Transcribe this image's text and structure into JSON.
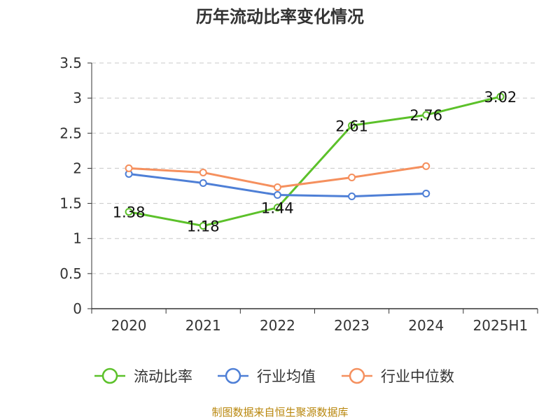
{
  "chart_data": {
    "type": "line",
    "title": "历年流动比率变化情况",
    "categories": [
      "2020",
      "2021",
      "2022",
      "2023",
      "2024",
      "2025H1"
    ],
    "ylim": [
      0,
      3.5
    ],
    "yticks": [
      "0",
      "0.5",
      "1",
      "1.5",
      "2",
      "2.5",
      "3",
      "3.5"
    ],
    "grid": true,
    "legend_position": "bottom",
    "series": [
      {
        "name": "流动比率",
        "color": "#5cc12a",
        "values": [
          1.38,
          1.18,
          1.44,
          2.61,
          2.76,
          3.02
        ],
        "labels": [
          "1.38",
          "1.18",
          "1.44",
          "2.61",
          "2.76",
          "3.02"
        ]
      },
      {
        "name": "行业均值",
        "color": "#4e7fd6",
        "values": [
          1.92,
          1.79,
          1.62,
          1.6,
          1.64,
          null
        ]
      },
      {
        "name": "行业中位数",
        "color": "#f5905e",
        "values": [
          2.0,
          1.94,
          1.73,
          1.87,
          2.03,
          null
        ]
      }
    ],
    "source": "制图数据来自恒生聚源数据库"
  }
}
